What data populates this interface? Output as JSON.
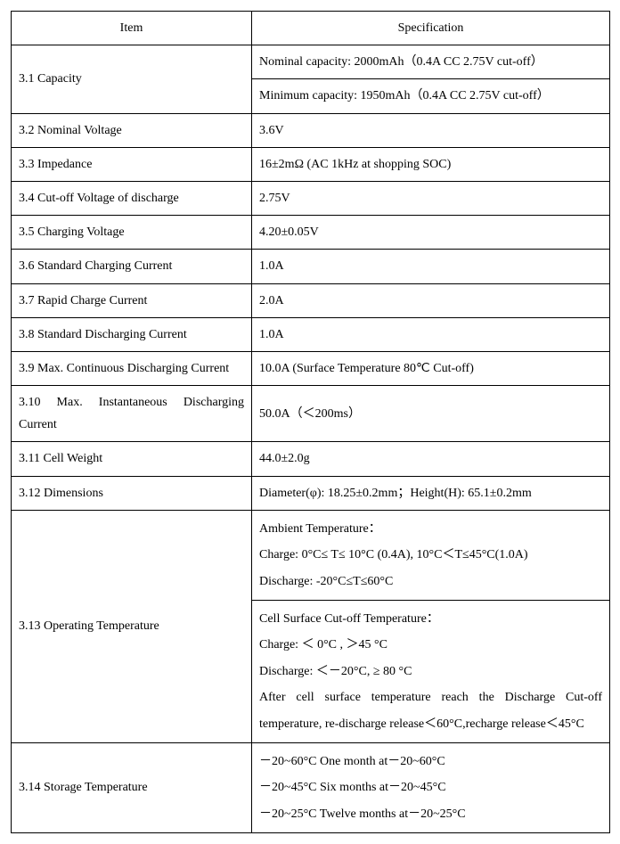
{
  "header": {
    "item": "Item",
    "spec": "Specification"
  },
  "rows": {
    "r1": {
      "item": "3.1 Capacity",
      "spec_a": "Nominal capacity: 2000mAh（0.4A CC 2.75V cut-off）",
      "spec_b": "Minimum capacity: 1950mAh（0.4A CC 2.75V cut-off）"
    },
    "r2": {
      "item": "3.2 Nominal Voltage",
      "spec": "3.6V"
    },
    "r3": {
      "item": "3.3 Impedance",
      "spec": "16±2mΩ (AC 1kHz at shopping SOC)"
    },
    "r4": {
      "item": "3.4 Cut-off Voltage of discharge",
      "spec": "2.75V"
    },
    "r5": {
      "item": "3.5 Charging Voltage",
      "spec": "4.20±0.05V"
    },
    "r6": {
      "item": "3.6 Standard Charging Current",
      "spec": "1.0A"
    },
    "r7": {
      "item": "3.7 Rapid Charge Current",
      "spec": "2.0A"
    },
    "r8": {
      "item": "3.8 Standard Discharging Current",
      "spec": "1.0A"
    },
    "r9": {
      "item": "3.9 Max. Continuous Discharging Current",
      "spec": "10.0A (Surface Temperature 80℃ Cut-off)"
    },
    "r10": {
      "item": "3.10 Max. Instantaneous Discharging Current",
      "spec": "50.0A（＜200ms）"
    },
    "r11": {
      "item": "3.11 Cell Weight",
      "spec": "44.0±2.0g"
    },
    "r12": {
      "item": "3.12 Dimensions",
      "spec": "Diameter(φ): 18.25±0.2mm；Height(H): 65.1±0.2mm"
    },
    "r13": {
      "item": "3.13 Operating Temperature",
      "spec_a": "Ambient Temperature：\nCharge: 0°C≤ T≤ 10°C (0.4A), 10°C＜T≤45°C(1.0A)\nDischarge: -20°C≤T≤60°C",
      "spec_b": "Cell Surface Cut-off Temperature：\nCharge: ＜ 0°C ,    ＞45 °C\nDischarge: ＜－20°C,    ≥ 80 °C\nAfter cell surface temperature reach the Discharge Cut-off temperature, re-discharge release＜60°C,recharge release＜45°C"
    },
    "r14": {
      "item": "3.14 Storage Temperature",
      "spec": "－20~60°C One month at－20~60°C\n－20~45°C Six months at－20~45°C\n－20~25°C Twelve months at－20~25°C"
    }
  }
}
